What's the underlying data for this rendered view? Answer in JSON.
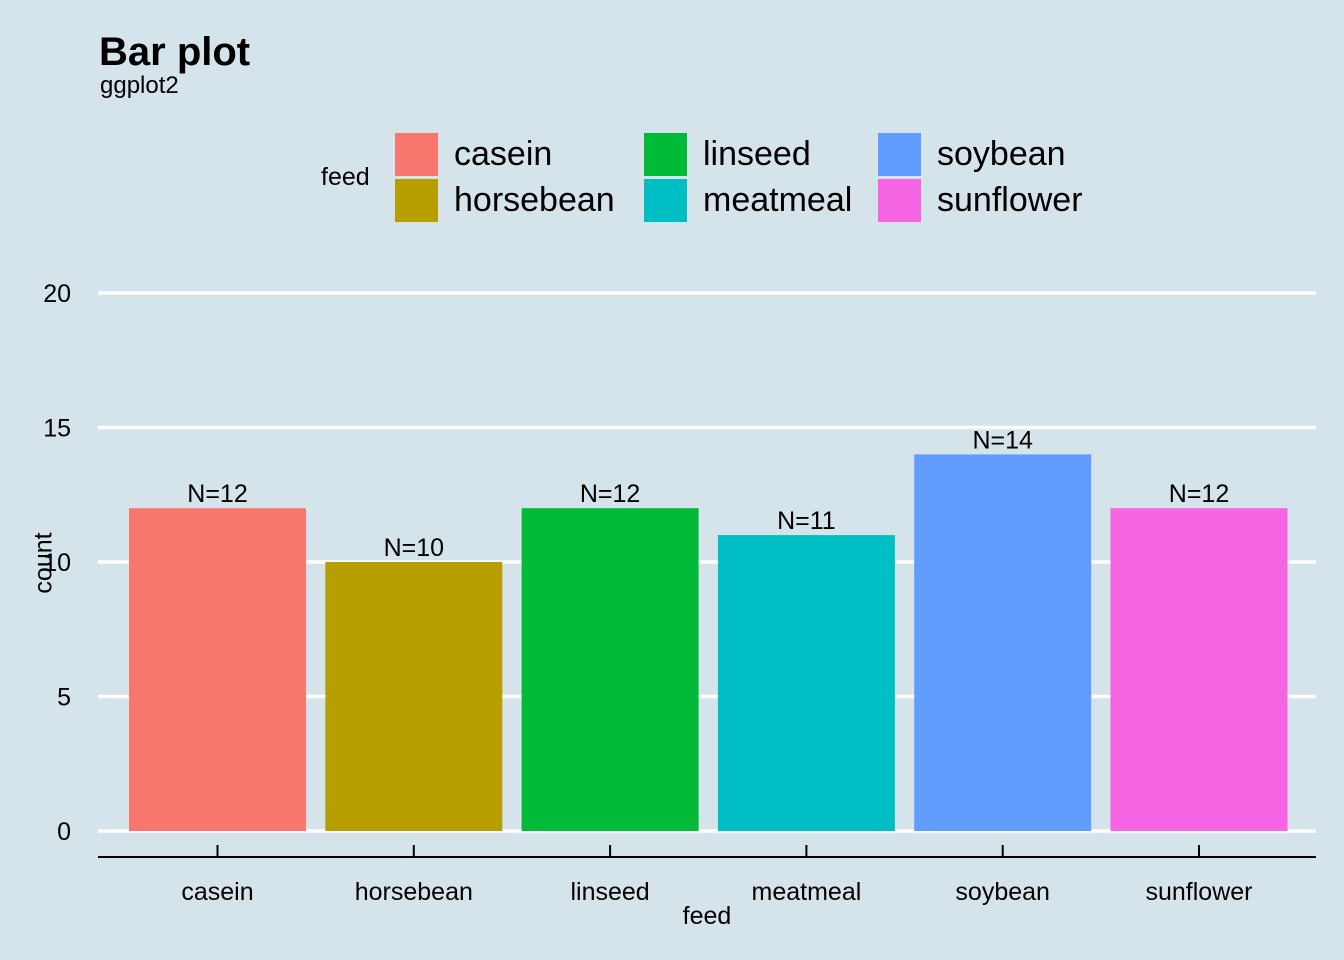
{
  "chart_data": {
    "type": "bar",
    "title": "Bar plot",
    "subtitle": "ggplot2",
    "xlabel": "feed",
    "ylabel": "count",
    "categories": [
      "casein",
      "horsebean",
      "linseed",
      "meatmeal",
      "soybean",
      "sunflower"
    ],
    "values": [
      12,
      10,
      12,
      11,
      14,
      12
    ],
    "data_labels": [
      "N=12",
      "N=10",
      "N=12",
      "N=11",
      "N=14",
      "N=12"
    ],
    "colors": [
      "#f8766d",
      "#b79f00",
      "#00ba38",
      "#00bfc4",
      "#619cff",
      "#f564e3"
    ],
    "ylim": [
      0,
      20
    ],
    "yticks": [
      0,
      5,
      10,
      15,
      20
    ],
    "grid": "horizontal major",
    "legend": {
      "title": "feed",
      "placement": "top",
      "entries": [
        "casein",
        "horsebean",
        "linseed",
        "meatmeal",
        "soybean",
        "sunflower"
      ]
    }
  }
}
